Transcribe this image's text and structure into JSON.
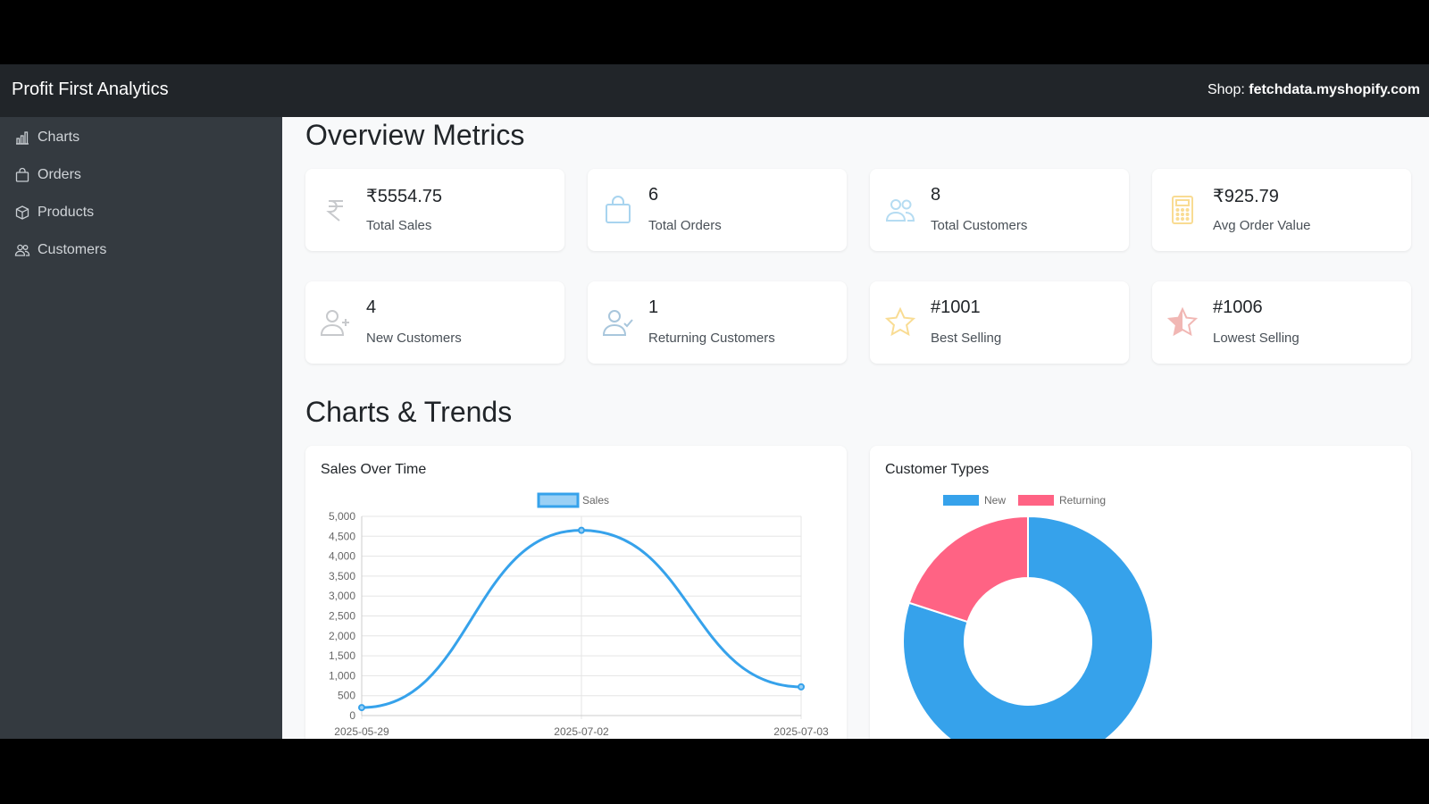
{
  "header": {
    "brand": "Profit First Analytics",
    "shop_label": "Shop:",
    "shop_name": "fetchdata.myshopify.com"
  },
  "sidebar": {
    "items": [
      {
        "label": "Charts",
        "icon": "bar-chart-icon"
      },
      {
        "label": "Orders",
        "icon": "bag-icon"
      },
      {
        "label": "Products",
        "icon": "box-icon"
      },
      {
        "label": "Customers",
        "icon": "people-icon"
      }
    ]
  },
  "overview": {
    "title": "Overview Metrics",
    "cards": [
      {
        "value": "₹5554.75",
        "label": "Total Sales",
        "icon": "rupee-icon"
      },
      {
        "value": "6",
        "label": "Total Orders",
        "icon": "bag-icon"
      },
      {
        "value": "8",
        "label": "Total Customers",
        "icon": "people-icon"
      },
      {
        "value": "₹925.79",
        "label": "Avg Order Value",
        "icon": "calculator-icon"
      },
      {
        "value": "4",
        "label": "New Customers",
        "icon": "person-plus-icon"
      },
      {
        "value": "1",
        "label": "Returning Customers",
        "icon": "person-check-icon"
      },
      {
        "value": "#1001",
        "label": "Best Selling",
        "icon": "star-icon"
      },
      {
        "value": "#1006",
        "label": "Lowest Selling",
        "icon": "star-half-icon"
      }
    ]
  },
  "charts": {
    "title": "Charts & Trends"
  },
  "colors": {
    "blue": "#36a2eb",
    "pink": "#ff6384",
    "sidebar": "#343a40",
    "topbar": "#212529"
  },
  "chart_data": [
    {
      "type": "line",
      "title": "Sales Over Time",
      "categories": [
        "2025-05-29",
        "2025-07-02",
        "2025-07-03"
      ],
      "series": [
        {
          "name": "Sales",
          "values": [
            200,
            4650,
            720
          ]
        }
      ],
      "ylim": [
        0,
        5000
      ],
      "yticks": [
        0,
        500,
        1000,
        1500,
        2000,
        2500,
        3000,
        3500,
        4000,
        4500,
        5000
      ],
      "grid": true,
      "legend": "top"
    },
    {
      "type": "pie",
      "title": "Customer Types",
      "categories": [
        "New",
        "Returning"
      ],
      "values": [
        4,
        1
      ],
      "legend": "top"
    }
  ]
}
